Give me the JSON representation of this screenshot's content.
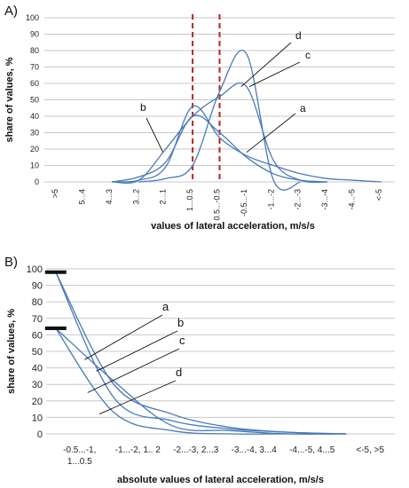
{
  "chart_data": [
    {
      "type": "line",
      "panel_label": "A)",
      "ylabel": "share of values, %",
      "xlabel": "values of lateral acceleration, m/s/s",
      "ylim": [
        0,
        100
      ],
      "ytick_step": 10,
      "grid": true,
      "categories": [
        ">5",
        "5...4",
        "4...3",
        "3...2",
        "2...1",
        "1...0.5",
        "0.5...-0.5",
        "-0.5...-1",
        "-1...-2",
        "-2...-3",
        "-3...-4",
        "-4...-5",
        "<-5"
      ],
      "vertical_markers": [
        5.5,
        6.5
      ],
      "series": [
        {
          "name": "a",
          "values": [
            0,
            0,
            0,
            1,
            9,
            46,
            27,
            16,
            10,
            5,
            2,
            1,
            0
          ]
        },
        {
          "name": "b",
          "values": [
            0,
            0,
            0,
            3,
            12,
            40,
            30,
            15,
            5,
            1,
            0,
            0,
            0
          ]
        },
        {
          "name": "c",
          "values": [
            0,
            0,
            0,
            1,
            20,
            40,
            52,
            58,
            13,
            1,
            0,
            0,
            0
          ]
        },
        {
          "name": "d",
          "values": [
            0,
            0,
            0,
            0,
            2,
            10,
            55,
            78,
            1,
            0,
            0,
            0,
            0
          ]
        }
      ],
      "labels": [
        {
          "text": "a",
          "target": [
            7.0,
            18
          ]
        },
        {
          "text": "b",
          "target": [
            3.9,
            18
          ]
        },
        {
          "text": "c",
          "target": [
            7.1,
            58
          ]
        },
        {
          "text": "d",
          "target": [
            6.8,
            58
          ]
        }
      ]
    },
    {
      "type": "line",
      "panel_label": "B)",
      "ylabel": "share of values, %",
      "xlabel": "absolute values of lateral acceleration, m/s/s",
      "ylim": [
        0,
        100
      ],
      "ytick_step": 10,
      "grid": true,
      "categories": [
        "-0.5...-1,\n1...0.5",
        "-1...-2, 1.. 2",
        "-2...-3, 2...3",
        "-3...-4, 3...4",
        "-4...-5, 4...5",
        "<-5, >5"
      ],
      "markers": [
        98,
        64
      ],
      "series": [
        {
          "name": "a",
          "values": [
            98,
            30,
            12,
            4,
            1,
            0
          ]
        },
        {
          "name": "b",
          "values": [
            98,
            22,
            8,
            3,
            1,
            0
          ]
        },
        {
          "name": "c",
          "values": [
            64,
            32,
            5,
            2,
            0,
            0
          ]
        },
        {
          "name": "d",
          "values": [
            64,
            13,
            2,
            0,
            0,
            0
          ]
        }
      ],
      "labels": [
        {
          "text": "a",
          "target": [
            0.5,
            45
          ]
        },
        {
          "text": "b",
          "target": [
            0.7,
            38
          ]
        },
        {
          "text": "c",
          "target": [
            0.55,
            25
          ]
        },
        {
          "text": "d",
          "target": [
            0.75,
            12
          ]
        }
      ]
    }
  ]
}
